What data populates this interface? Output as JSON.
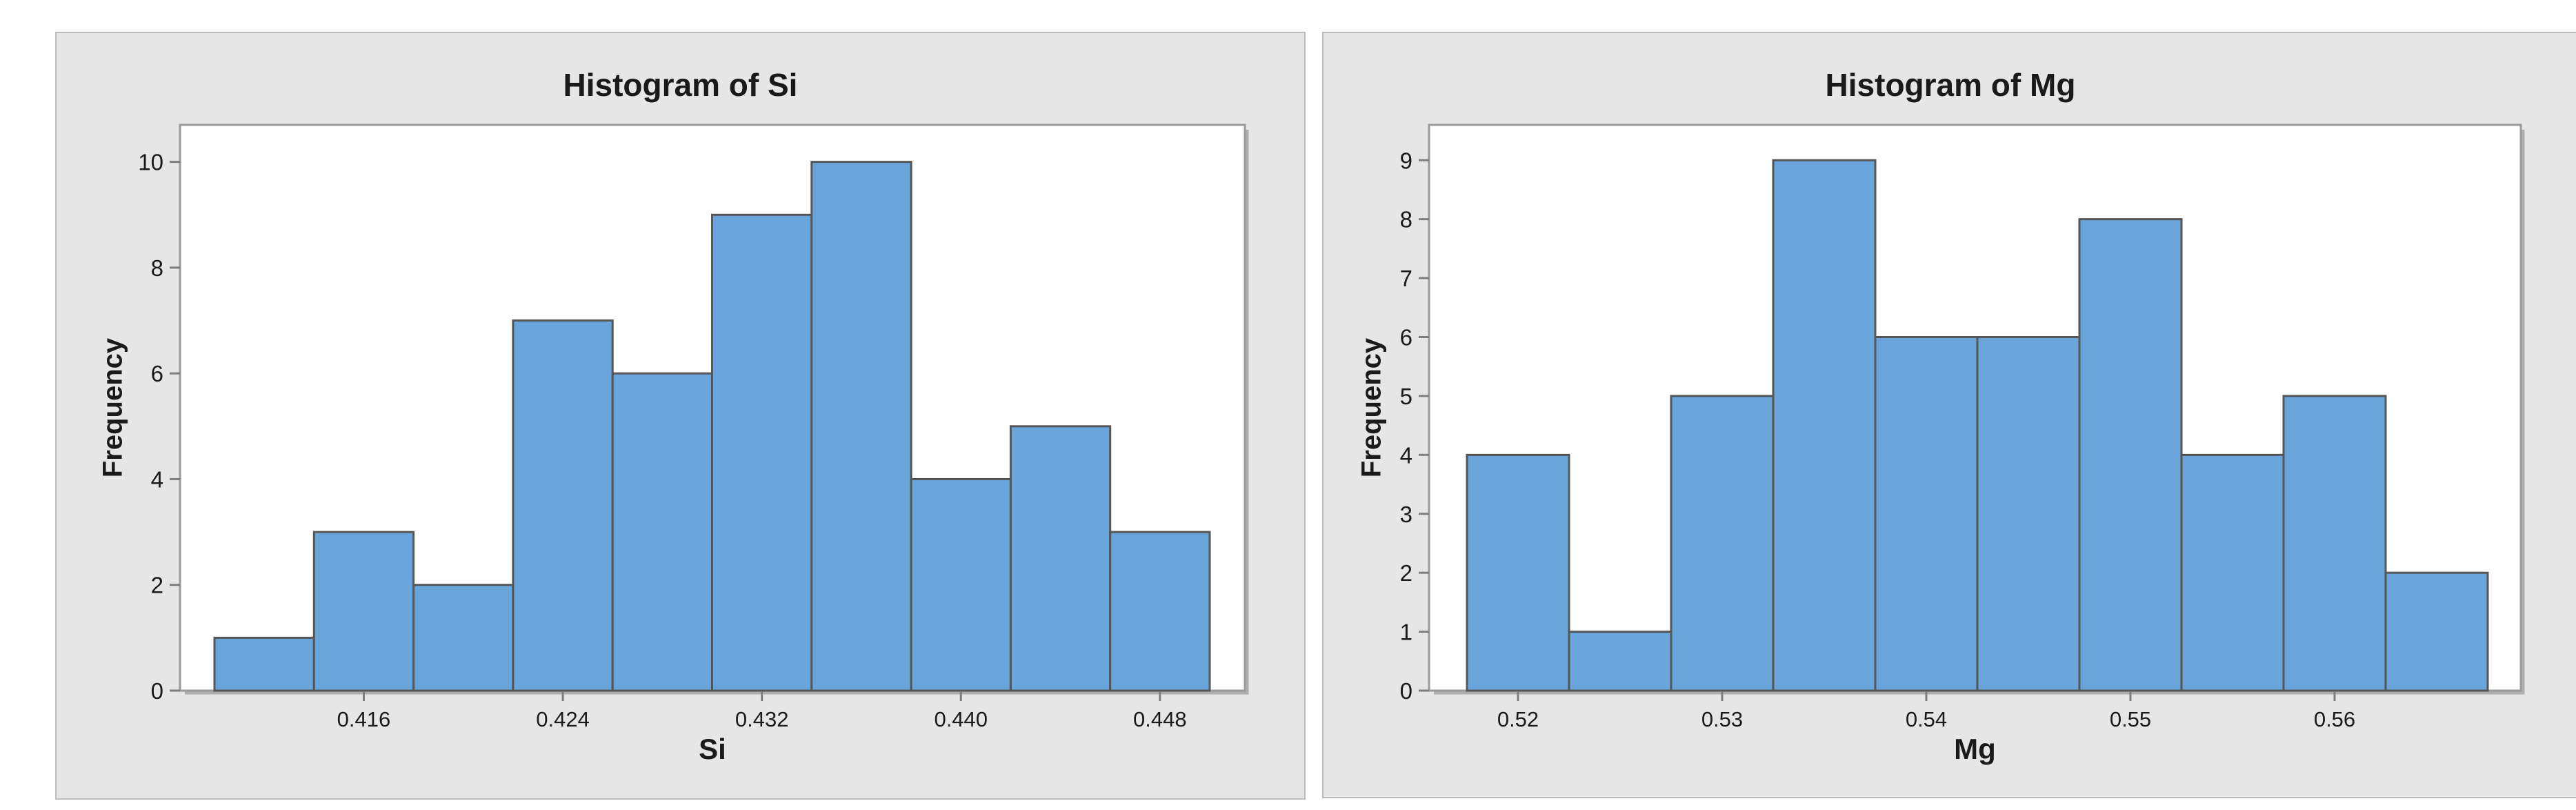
{
  "page": {
    "background": "#ffffff",
    "description_titles": [
      "Histogram of Si",
      "Histogram of Mg"
    ]
  },
  "colors": {
    "bar_fill": "#69a5db",
    "bar_stroke": "#565656",
    "plot_border": "#9b9b9b",
    "plot_shadow": "#aeaeae",
    "tick": "#7d7d7d",
    "panel_bg": "#e6e6e6",
    "panel_border": "#bdbdbd",
    "text": "#1a1a1a",
    "plot_bg": "#ffffff"
  },
  "chart_data": [
    {
      "type": "bar",
      "subtype": "histogram",
      "title": "Histogram of Si",
      "xlabel": "Si",
      "ylabel": "Frequency",
      "values": [
        1,
        3,
        2,
        7,
        6,
        9,
        10,
        4,
        5,
        3
      ],
      "yticks": [
        0,
        2,
        4,
        6,
        8,
        10
      ],
      "ylim": [
        0,
        10.7
      ],
      "xticks": [
        {
          "label": "0.416",
          "bin": 1
        },
        {
          "label": "0.424",
          "bin": 3
        },
        {
          "label": "0.432",
          "bin": 5
        },
        {
          "label": "0.440",
          "bin": 7
        },
        {
          "label": "0.448",
          "bin": 9
        }
      ],
      "grid": false,
      "legend": null
    },
    {
      "type": "bar",
      "subtype": "histogram",
      "title": "Histogram of Mg",
      "xlabel": "Mg",
      "ylabel": "Frequency",
      "values": [
        4,
        1,
        5,
        9,
        6,
        6,
        8,
        4,
        5,
        2
      ],
      "yticks": [
        0,
        1,
        2,
        3,
        4,
        5,
        6,
        7,
        8,
        9
      ],
      "ylim": [
        0,
        9.6
      ],
      "xticks": [
        {
          "label": "0.52",
          "bin": 0
        },
        {
          "label": "0.53",
          "bin": 2
        },
        {
          "label": "0.54",
          "bin": 4
        },
        {
          "label": "0.55",
          "bin": 6
        },
        {
          "label": "0.56",
          "bin": 8
        }
      ],
      "grid": false,
      "legend": null
    }
  ]
}
